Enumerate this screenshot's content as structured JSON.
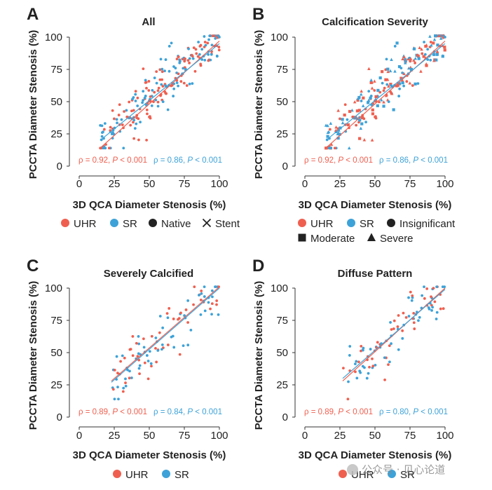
{
  "colors": {
    "uhr": "#EF5F4F",
    "sr": "#3DA2D8",
    "text": "#222222",
    "axis": "#333333"
  },
  "watermark": "公众号 · 见心论道",
  "chart_data": [
    {
      "type": "scatter",
      "letter": "A",
      "title": "All",
      "xlabel": "3D QCA Diameter Stenosis (%)",
      "ylabel": "PCCTA Diameter Stenosis (%)",
      "xlim": [
        0,
        100
      ],
      "ylim": [
        0,
        100
      ],
      "xticks": [
        0,
        25,
        50,
        75,
        100
      ],
      "yticks": [
        0,
        25,
        50,
        75,
        100
      ],
      "legend": [
        {
          "label": "UHR",
          "marker": "circle",
          "color": "uhr"
        },
        {
          "label": "SR",
          "marker": "circle",
          "color": "sr"
        },
        {
          "label": "Native",
          "marker": "circle",
          "color": "text"
        },
        {
          "label": "Stent",
          "marker": "cross",
          "color": "text"
        }
      ],
      "stats": [
        {
          "series": "UHR",
          "rho": "ρ = 0.92, ",
          "p": "P",
          "rest": " < 0.001"
        },
        {
          "series": "SR",
          "rho": "ρ = 0.86, ",
          "p": "P",
          "rest": " < 0.001"
        }
      ],
      "points": 240,
      "xrange": [
        15,
        100
      ],
      "noise": 9,
      "seed": 11,
      "markers": [
        "circle"
      ],
      "series": [
        {
          "name": "UHR",
          "fit": [
            [
              15,
              14
            ],
            [
              100,
              97
            ]
          ]
        },
        {
          "name": "SR",
          "fit": [
            [
              15,
              20
            ],
            [
              100,
              95
            ]
          ]
        }
      ]
    },
    {
      "type": "scatter",
      "letter": "B",
      "title": "Calcification Severity",
      "xlabel": "3D QCA Diameter Stenosis (%)",
      "ylabel": "PCCTA Diameter Stenosis (%)",
      "xlim": [
        0,
        100
      ],
      "ylim": [
        0,
        100
      ],
      "xticks": [
        0,
        25,
        50,
        75,
        100
      ],
      "yticks": [
        0,
        25,
        50,
        75,
        100
      ],
      "legend": [
        {
          "label": "UHR",
          "marker": "circle",
          "color": "uhr"
        },
        {
          "label": "SR",
          "marker": "circle",
          "color": "sr"
        },
        {
          "label": "Insignificant",
          "marker": "circle",
          "color": "text"
        },
        {
          "label": "Moderate",
          "marker": "square",
          "color": "text"
        },
        {
          "label": "Severe",
          "marker": "triangle",
          "color": "text"
        }
      ],
      "stats": [
        {
          "series": "UHR",
          "rho": "ρ = 0.92, ",
          "p": "P",
          "rest": " < 0.001"
        },
        {
          "series": "SR",
          "rho": "ρ = 0.86, ",
          "p": "P",
          "rest": " < 0.001"
        }
      ],
      "points": 240,
      "xrange": [
        15,
        100
      ],
      "noise": 9,
      "seed": 11,
      "markers": [
        "circle",
        "square",
        "triangle"
      ],
      "series": [
        {
          "name": "UHR",
          "fit": [
            [
              15,
              14
            ],
            [
              100,
              97
            ]
          ]
        },
        {
          "name": "SR",
          "fit": [
            [
              15,
              20
            ],
            [
              100,
              95
            ]
          ]
        }
      ]
    },
    {
      "type": "scatter",
      "letter": "C",
      "title": "Severely Calcified",
      "xlabel": "3D QCA Diameter Stenosis (%)",
      "ylabel": "PCCTA Diameter Stenosis (%)",
      "xlim": [
        0,
        100
      ],
      "ylim": [
        0,
        100
      ],
      "xticks": [
        0,
        25,
        50,
        75,
        100
      ],
      "yticks": [
        0,
        25,
        50,
        75,
        100
      ],
      "legend": [
        {
          "label": "UHR",
          "marker": "circle",
          "color": "uhr"
        },
        {
          "label": "SR",
          "marker": "circle",
          "color": "sr"
        }
      ],
      "stats": [
        {
          "series": "UHR",
          "rho": "ρ = 0.89, ",
          "p": "P",
          "rest": " < 0.001"
        },
        {
          "series": "SR",
          "rho": "ρ = 0.84, ",
          "p": "P",
          "rest": " < 0.001"
        }
      ],
      "points": 110,
      "xrange": [
        23,
        100
      ],
      "noise": 10,
      "seed": 37,
      "markers": [
        "circle"
      ],
      "series": [
        {
          "name": "UHR",
          "fit": [
            [
              23,
              28
            ],
            [
              100,
              101
            ]
          ]
        },
        {
          "name": "SR",
          "fit": [
            [
              23,
              27
            ],
            [
              100,
              100
            ]
          ]
        }
      ]
    },
    {
      "type": "scatter",
      "letter": "D",
      "title": "Diffuse Pattern",
      "xlabel": "3D QCA Diameter Stenosis (%)",
      "ylabel": "PCCTA Diameter Stenosis (%)",
      "xlim": [
        0,
        100
      ],
      "ylim": [
        0,
        100
      ],
      "xticks": [
        0,
        25,
        50,
        75,
        100
      ],
      "yticks": [
        0,
        25,
        50,
        75,
        100
      ],
      "legend": [
        {
          "label": "UHR",
          "marker": "circle",
          "color": "uhr"
        },
        {
          "label": "SR",
          "marker": "circle",
          "color": "sr"
        }
      ],
      "stats": [
        {
          "series": "UHR",
          "rho": "ρ = 0.89, ",
          "p": "P",
          "rest": " < 0.001"
        },
        {
          "series": "SR",
          "rho": "ρ = 0.80, ",
          "p": "P",
          "rest": " < 0.001"
        }
      ],
      "points": 100,
      "xrange": [
        27,
        100
      ],
      "noise": 9,
      "seed": 73,
      "markers": [
        "circle"
      ],
      "series": [
        {
          "name": "UHR",
          "fit": [
            [
              27,
              28
            ],
            [
              100,
              100
            ]
          ]
        },
        {
          "name": "SR",
          "fit": [
            [
              27,
              30
            ],
            [
              100,
              99
            ]
          ]
        }
      ]
    }
  ]
}
